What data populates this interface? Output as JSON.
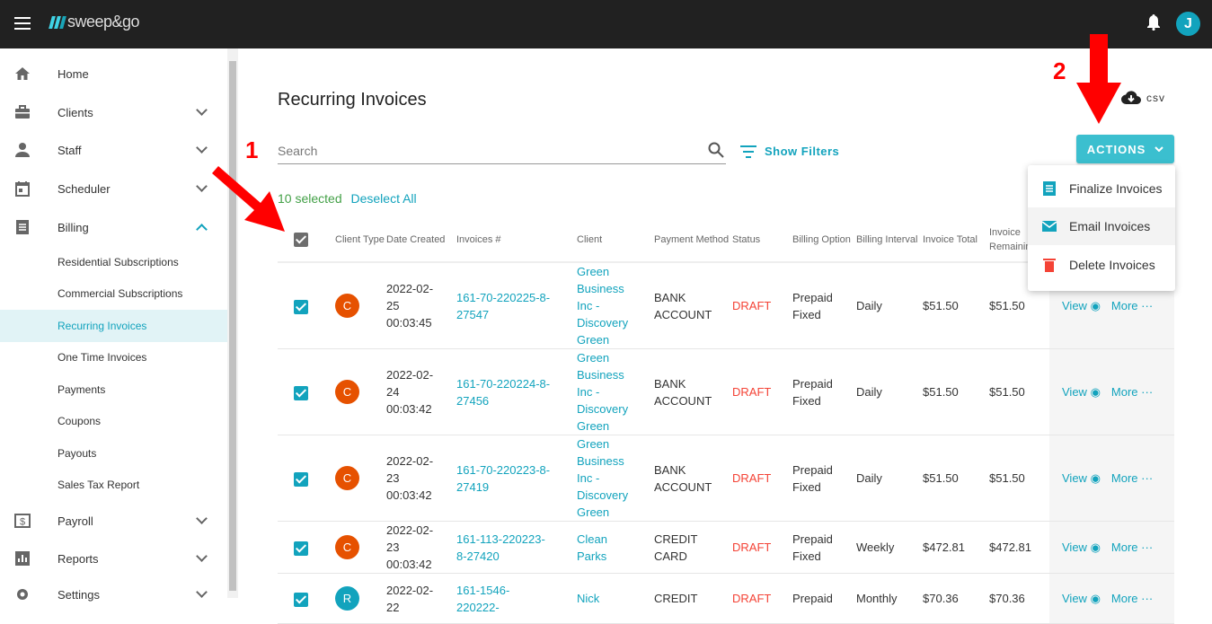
{
  "app": {
    "brand": "sweep&go",
    "avatar_letter": "J"
  },
  "sidebar": {
    "items": [
      {
        "label": "Home",
        "icon": "home-icon"
      },
      {
        "label": "Clients",
        "icon": "briefcase-icon",
        "chevron": "down"
      },
      {
        "label": "Staff",
        "icon": "person-icon",
        "chevron": "down"
      },
      {
        "label": "Scheduler",
        "icon": "calendar-icon",
        "chevron": "down"
      },
      {
        "label": "Billing",
        "icon": "receipt-icon",
        "chevron": "up"
      }
    ],
    "billing_sub": [
      "Residential Subscriptions",
      "Commercial Subscriptions",
      "Recurring Invoices",
      "One Time Invoices",
      "Payments",
      "Coupons",
      "Payouts",
      "Sales Tax Report"
    ],
    "active_sub": "Recurring Invoices",
    "lower_items": [
      {
        "label": "Payroll",
        "icon": "dollar-icon",
        "chevron": "down"
      },
      {
        "label": "Reports",
        "icon": "chart-icon",
        "chevron": "down"
      },
      {
        "label": "Settings",
        "icon": "gear-icon",
        "chevron": "down"
      }
    ]
  },
  "page": {
    "title": "Recurring Invoices",
    "csv": "csv",
    "search_placeholder": "Search",
    "show_filters": "Show Filters",
    "actions": "ACTIONS",
    "selected": "10 selected",
    "deselect_all": "Deselect All"
  },
  "menu": {
    "items": [
      {
        "label": "Finalize Invoices",
        "icon": "receipt-icon",
        "color": "#12a3bd"
      },
      {
        "label": "Email Invoices",
        "icon": "email-icon",
        "color": "#12a3bd"
      },
      {
        "label": "Delete Invoices",
        "icon": "trash-icon",
        "color": "#f44336"
      }
    ]
  },
  "table": {
    "headers": [
      "",
      "Client Type",
      "Date Created",
      "Invoices #",
      "Client",
      "Payment Method",
      "Status",
      "Billing Option",
      "Billing Interval",
      "Invoice Total",
      "Invoice Remaining",
      ""
    ],
    "rows": [
      {
        "checked": true,
        "type": "C",
        "type_color": "#e65100",
        "date": "2022-02-25 00:03:45",
        "invoice": "161-70-220225-8-27547",
        "client": "Green Business Inc - Discovery Green",
        "payment": "BANK ACCOUNT",
        "status": "DRAFT",
        "option": "Prepaid Fixed",
        "interval": "Daily",
        "total": "$51.50",
        "remaining": "$51.50",
        "view": "View",
        "more": "More"
      },
      {
        "checked": true,
        "type": "C",
        "type_color": "#e65100",
        "date": "2022-02-24 00:03:42",
        "invoice": "161-70-220224-8-27456",
        "client": "Green Business Inc - Discovery Green",
        "payment": "BANK ACCOUNT",
        "status": "DRAFT",
        "option": "Prepaid Fixed",
        "interval": "Daily",
        "total": "$51.50",
        "remaining": "$51.50",
        "view": "View",
        "more": "More"
      },
      {
        "checked": true,
        "type": "C",
        "type_color": "#e65100",
        "date": "2022-02-23 00:03:42",
        "invoice": "161-70-220223-8-27419",
        "client": "Green Business Inc - Discovery Green",
        "payment": "BANK ACCOUNT",
        "status": "DRAFT",
        "option": "Prepaid Fixed",
        "interval": "Daily",
        "total": "$51.50",
        "remaining": "$51.50",
        "view": "View",
        "more": "More"
      },
      {
        "checked": true,
        "type": "C",
        "type_color": "#e65100",
        "date": "2022-02-23 00:03:42",
        "invoice": "161-113-220223-8-27420",
        "client": "Clean Parks",
        "payment": "CREDIT CARD",
        "status": "DRAFT",
        "option": "Prepaid Fixed",
        "interval": "Weekly",
        "total": "$472.81",
        "remaining": "$472.81",
        "view": "View",
        "more": "More"
      },
      {
        "checked": true,
        "type": "R",
        "type_color": "#12a3bd",
        "date": "2022-02-22",
        "invoice": "161-1546-220222-",
        "client": "Nick",
        "payment": "CREDIT",
        "status": "DRAFT",
        "option": "Prepaid",
        "interval": "Monthly",
        "total": "$70.36",
        "remaining": "$70.36",
        "view": "View",
        "more": "More"
      }
    ]
  },
  "annotations": [
    "1",
    "2"
  ]
}
